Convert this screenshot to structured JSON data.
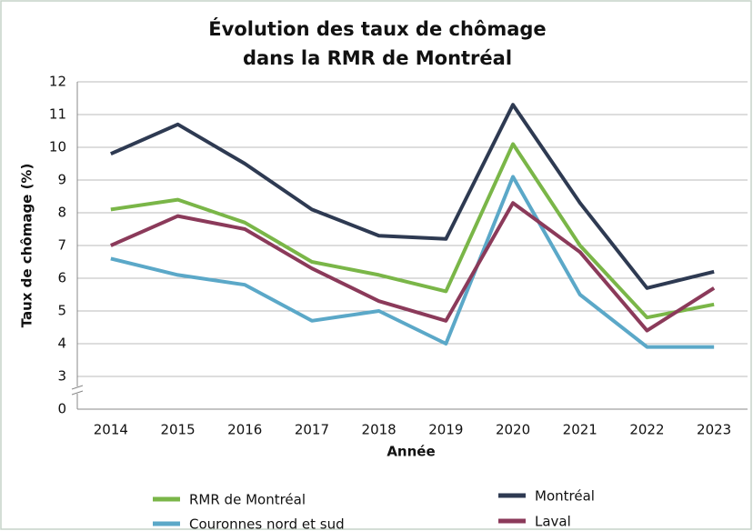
{
  "chart_data": {
    "type": "line",
    "title": [
      "Évolution des taux de chômage",
      "dans la RMR de Montréal"
    ],
    "x_label": "Année",
    "y_label": "Taux de chômage (%)",
    "categories": [
      "2014",
      "2015",
      "2016",
      "2017",
      "2018",
      "2019",
      "2020",
      "2021",
      "2022",
      "2023"
    ],
    "series": [
      {
        "name": "RMR de Montréal",
        "color": "#7ab648",
        "values": [
          8.1,
          8.4,
          7.7,
          6.5,
          6.1,
          5.6,
          10.1,
          7.0,
          4.8,
          5.2
        ]
      },
      {
        "name": "Montréal",
        "color": "#2e3a52",
        "values": [
          9.8,
          10.7,
          9.5,
          8.1,
          7.3,
          7.2,
          11.3,
          8.3,
          5.7,
          6.2
        ]
      },
      {
        "name": "Couronnes nord et sud",
        "color": "#5ba8c8",
        "values": [
          6.6,
          6.1,
          5.8,
          4.7,
          5.0,
          4.0,
          9.1,
          5.5,
          3.9,
          3.9
        ]
      },
      {
        "name": "Laval",
        "color": "#8b3a5a",
        "values": [
          7.0,
          7.9,
          7.5,
          6.3,
          5.3,
          4.7,
          8.3,
          6.8,
          4.4,
          5.7
        ]
      }
    ],
    "ylim": [
      0,
      12
    ],
    "yticks": [
      0,
      3,
      4,
      5,
      6,
      7,
      8,
      9,
      10,
      11,
      12
    ],
    "axis_break": [
      0,
      3
    ],
    "grid": true,
    "legend": "bottom"
  }
}
